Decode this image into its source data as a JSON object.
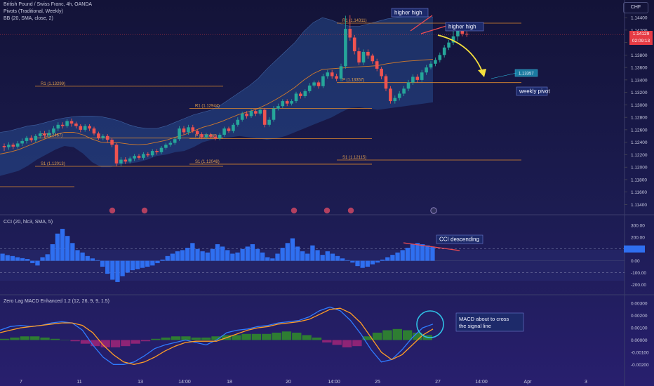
{
  "header": {
    "symbol_line": "British Pound / Swiss Franc, 4h, OANDA",
    "pivots_line": "Pivots (Traditional, Weekly)",
    "bb_line": "BB (20, SMA, close, 2)",
    "currency_badge": "CHF",
    "price_tag": "1.14129",
    "countdown": "02:09:13",
    "projection_tag": "1.13357"
  },
  "cci_header": "CCI (20, hlc3, SMA, 5)",
  "macd_header": "Zero Lag MACD Enhanced 1.2 (12, 26, 9, 9, 1.5)",
  "annotations": {
    "higher_high_1": "higher high",
    "higher_high_2": "higher high",
    "weekly_pivot": "weekly pivot",
    "cci_descending": "CCI descending",
    "macd_note_line1": "MACD about to cross",
    "macd_note_line2": "the signal line"
  },
  "colors": {
    "bull": "#26a69a",
    "bear": "#ef5350",
    "bb_fill": "#2a5aa5",
    "basis": "#d07a2c",
    "pivot": "#e08a2e",
    "cci_bar": "#2f6ff0",
    "macd_line": "#2f7bff",
    "signal_line": "#ff9d26",
    "hist_pos": "#2e7d32",
    "hist_neg": "#8e2476",
    "arrow": "#f5df3d",
    "callout": "#2fc1e6"
  },
  "chart_data": [
    {
      "type": "candlestick",
      "y_ticks": [
        "1.14400",
        "1.14200",
        "1.14000",
        "1.13800",
        "1.13600",
        "1.13400",
        "1.13200",
        "1.13000",
        "1.12800",
        "1.12600",
        "1.12400",
        "1.12200",
        "1.12000",
        "1.11800",
        "1.11600",
        "1.11400"
      ],
      "ylim": [
        1.1136,
        1.1448
      ],
      "x_ticks": [
        "7",
        "11",
        "13",
        "14:00",
        "18",
        "20",
        "14:00",
        "25",
        "27",
        "14:00",
        "Apr",
        "3"
      ],
      "last_price": 1.14129,
      "pivot_levels": [
        {
          "label": "R1 (1.13299)",
          "value": 1.13299
        },
        {
          "label": "P (1.12467)",
          "value": 1.12467
        },
        {
          "label": "S1 (1.12013)",
          "value": 1.12013
        },
        {
          "label": "R1 (1.12944)",
          "value": 1.12944
        },
        {
          "label": "P (1.12458)",
          "value": 1.12458
        },
        {
          "label": "S1 (1.12048)",
          "value": 1.12048
        },
        {
          "label": "R1 (1.14311)",
          "value": 1.14311
        },
        {
          "label": "P (1.13357)",
          "value": 1.13357
        },
        {
          "label": "S1 (1.12115)",
          "value": 1.12115
        }
      ],
      "candles": [
        [
          1.1234,
          1.1232,
          1.1238,
          1.1226
        ],
        [
          1.1232,
          1.1236,
          1.124,
          1.1228
        ],
        [
          1.1236,
          1.1233,
          1.1239,
          1.1229
        ],
        [
          1.1233,
          1.1238,
          1.1242,
          1.123
        ],
        [
          1.1238,
          1.1242,
          1.1246,
          1.1234
        ],
        [
          1.1242,
          1.1247,
          1.125,
          1.1238
        ],
        [
          1.1247,
          1.1243,
          1.1251,
          1.124
        ],
        [
          1.1243,
          1.125,
          1.1253,
          1.124
        ],
        [
          1.125,
          1.1254,
          1.1258,
          1.1246
        ],
        [
          1.1254,
          1.1251,
          1.1258,
          1.1247
        ],
        [
          1.1251,
          1.1255,
          1.126,
          1.1248
        ],
        [
          1.1255,
          1.1262,
          1.1266,
          1.1252
        ],
        [
          1.1262,
          1.1268,
          1.1272,
          1.1258
        ],
        [
          1.1268,
          1.1266,
          1.1272,
          1.1262
        ],
        [
          1.1266,
          1.1274,
          1.1277,
          1.1263
        ],
        [
          1.1274,
          1.127,
          1.1278,
          1.1265
        ],
        [
          1.127,
          1.1266,
          1.1273,
          1.1262
        ],
        [
          1.1266,
          1.126,
          1.1269,
          1.1256
        ],
        [
          1.126,
          1.1266,
          1.1269,
          1.1257
        ],
        [
          1.1266,
          1.1262,
          1.1269,
          1.1258
        ],
        [
          1.1262,
          1.1254,
          1.1265,
          1.1251
        ],
        [
          1.1254,
          1.1247,
          1.1257,
          1.1244
        ],
        [
          1.1247,
          1.125,
          1.1253,
          1.1243
        ],
        [
          1.125,
          1.1244,
          1.1253,
          1.124
        ],
        [
          1.1244,
          1.1236,
          1.1247,
          1.1232
        ],
        [
          1.1236,
          1.1206,
          1.1239,
          1.1201
        ],
        [
          1.1206,
          1.1212,
          1.1216,
          1.1201
        ],
        [
          1.1212,
          1.1209,
          1.1216,
          1.1205
        ],
        [
          1.1209,
          1.1214,
          1.1217,
          1.1206
        ],
        [
          1.1214,
          1.1218,
          1.1221,
          1.121
        ],
        [
          1.1218,
          1.1215,
          1.1221,
          1.1212
        ],
        [
          1.1215,
          1.1221,
          1.1224,
          1.1212
        ],
        [
          1.1221,
          1.1219,
          1.1224,
          1.1216
        ],
        [
          1.1219,
          1.1226,
          1.1229,
          1.1216
        ],
        [
          1.1226,
          1.1224,
          1.1229,
          1.122
        ],
        [
          1.1224,
          1.1231,
          1.1234,
          1.1221
        ],
        [
          1.1231,
          1.1236,
          1.1239,
          1.1228
        ],
        [
          1.1236,
          1.1239,
          1.1242,
          1.1233
        ],
        [
          1.1239,
          1.1245,
          1.1248,
          1.1236
        ],
        [
          1.1245,
          1.1262,
          1.1266,
          1.1242
        ],
        [
          1.1262,
          1.1256,
          1.1266,
          1.1252
        ],
        [
          1.1256,
          1.1264,
          1.1268,
          1.1252
        ],
        [
          1.1264,
          1.1258,
          1.1268,
          1.1255
        ],
        [
          1.1258,
          1.1253,
          1.1261,
          1.125
        ],
        [
          1.1253,
          1.1248,
          1.1256,
          1.1245
        ],
        [
          1.1248,
          1.1252,
          1.1255,
          1.1245
        ],
        [
          1.1252,
          1.1249,
          1.1255,
          1.1246
        ],
        [
          1.1249,
          1.1246,
          1.1253,
          1.1243
        ],
        [
          1.1246,
          1.1252,
          1.1255,
          1.1243
        ],
        [
          1.1252,
          1.1262,
          1.1265,
          1.1249
        ],
        [
          1.1262,
          1.1258,
          1.1265,
          1.1255
        ],
        [
          1.1258,
          1.1268,
          1.1271,
          1.1255
        ],
        [
          1.1268,
          1.1276,
          1.128,
          1.1265
        ],
        [
          1.1276,
          1.1286,
          1.1289,
          1.1273
        ],
        [
          1.1286,
          1.1282,
          1.129,
          1.1278
        ],
        [
          1.1282,
          1.129,
          1.1293,
          1.1279
        ],
        [
          1.129,
          1.1286,
          1.1293,
          1.1282
        ],
        [
          1.1286,
          1.1292,
          1.1295,
          1.1283
        ],
        [
          1.1292,
          1.1268,
          1.1295,
          1.1264
        ],
        [
          1.1268,
          1.1276,
          1.128,
          1.1265
        ],
        [
          1.1276,
          1.1294,
          1.1298,
          1.1273
        ],
        [
          1.1294,
          1.1298,
          1.1302,
          1.1291
        ],
        [
          1.1298,
          1.1306,
          1.1309,
          1.1295
        ],
        [
          1.1306,
          1.1302,
          1.1309,
          1.1298
        ],
        [
          1.1302,
          1.1306,
          1.1309,
          1.1299
        ],
        [
          1.1306,
          1.1318,
          1.1321,
          1.1303
        ],
        [
          1.1318,
          1.1314,
          1.1321,
          1.131
        ],
        [
          1.1314,
          1.1322,
          1.1325,
          1.1311
        ],
        [
          1.1322,
          1.1331,
          1.1335,
          1.1319
        ],
        [
          1.1331,
          1.1336,
          1.1339,
          1.1328
        ],
        [
          1.1336,
          1.133,
          1.1339,
          1.1326
        ],
        [
          1.133,
          1.1346,
          1.135,
          1.1327
        ],
        [
          1.1346,
          1.1352,
          1.1356,
          1.1342
        ],
        [
          1.1352,
          1.1346,
          1.1356,
          1.1342
        ],
        [
          1.1346,
          1.1342,
          1.135,
          1.1338
        ],
        [
          1.1342,
          1.1362,
          1.1366,
          1.1338
        ],
        [
          1.1362,
          1.1422,
          1.1443,
          1.1358
        ],
        [
          1.1422,
          1.1408,
          1.1444,
          1.1403
        ],
        [
          1.1408,
          1.1386,
          1.1412,
          1.1381
        ],
        [
          1.1386,
          1.1368,
          1.1392,
          1.1364
        ],
        [
          1.1368,
          1.1385,
          1.1389,
          1.1364
        ],
        [
          1.1385,
          1.1379,
          1.1389,
          1.1374
        ],
        [
          1.1379,
          1.137,
          1.1382,
          1.1366
        ],
        [
          1.137,
          1.1358,
          1.1374,
          1.1354
        ],
        [
          1.1358,
          1.1346,
          1.1361,
          1.1341
        ],
        [
          1.1346,
          1.1326,
          1.1349,
          1.1322
        ],
        [
          1.1326,
          1.1306,
          1.133,
          1.1302
        ],
        [
          1.1306,
          1.1311,
          1.1315,
          1.1302
        ],
        [
          1.1311,
          1.1318,
          1.1322,
          1.1307
        ],
        [
          1.1318,
          1.1326,
          1.133,
          1.1314
        ],
        [
          1.1326,
          1.1336,
          1.134,
          1.1322
        ],
        [
          1.1336,
          1.1345,
          1.1349,
          1.1332
        ],
        [
          1.1345,
          1.134,
          1.1349,
          1.1336
        ],
        [
          1.134,
          1.1352,
          1.1356,
          1.1337
        ],
        [
          1.1352,
          1.136,
          1.1364,
          1.1348
        ],
        [
          1.136,
          1.1366,
          1.137,
          1.1357
        ],
        [
          1.1366,
          1.1372,
          1.1376,
          1.1362
        ],
        [
          1.1372,
          1.138,
          1.1384,
          1.1368
        ],
        [
          1.138,
          1.1392,
          1.1396,
          1.1376
        ],
        [
          1.1392,
          1.14,
          1.1404,
          1.1388
        ],
        [
          1.14,
          1.141,
          1.1432,
          1.1396
        ],
        [
          1.141,
          1.142,
          1.143,
          1.1402
        ],
        [
          1.142,
          1.1414,
          1.1428,
          1.141
        ],
        [
          1.1414,
          1.1413,
          1.1418,
          1.1409
        ]
      ],
      "bb_upper": [
        1.1256,
        1.1258,
        1.1262,
        1.1266,
        1.1268,
        1.1272,
        1.1276,
        1.1279,
        1.1281,
        1.1282,
        1.1282,
        1.1281,
        1.1278,
        1.1274,
        1.1268,
        1.1264,
        1.1262,
        1.1262,
        1.1266,
        1.1272,
        1.1278,
        1.1284,
        1.1288,
        1.1292,
        1.13,
        1.131,
        1.132,
        1.133,
        1.1342,
        1.1358,
        1.1372,
        1.1386,
        1.14,
        1.1418,
        1.1432,
        1.144,
        1.1436,
        1.143,
        1.1426,
        1.1426,
        1.143,
        1.1434,
        1.1438,
        1.144,
        1.1442,
        1.1442,
        1.1442,
        1.1441
      ],
      "bb_lower": [
        1.1186,
        1.119,
        1.1194,
        1.1202,
        1.1212,
        1.122,
        1.1228,
        1.1234,
        1.1232,
        1.1222,
        1.1208,
        1.12,
        1.12,
        1.1204,
        1.1206,
        1.1208,
        1.1212,
        1.1218,
        1.122,
        1.1224,
        1.1226,
        1.1232,
        1.124,
        1.1244,
        1.1246,
        1.1248,
        1.125,
        1.1248,
        1.1246,
        1.1244,
        1.1246,
        1.125,
        1.1256,
        1.1262,
        1.1268,
        1.1274,
        1.128,
        1.1288,
        1.1295,
        1.1296,
        1.1294,
        1.1292,
        1.1294,
        1.1296,
        1.1298,
        1.13,
        1.1302,
        1.1304
      ],
      "bb_basis": [
        1.1221,
        1.1224,
        1.1228,
        1.1234,
        1.124,
        1.1246,
        1.1252,
        1.1256,
        1.1256,
        1.1252,
        1.1245,
        1.124,
        1.1239,
        1.1239,
        1.1237,
        1.1236,
        1.1237,
        1.124,
        1.1243,
        1.1248,
        1.1252,
        1.1258,
        1.1264,
        1.1268,
        1.1273,
        1.1279,
        1.1285,
        1.1289,
        1.1294,
        1.1301,
        1.1309,
        1.1318,
        1.1328,
        1.134,
        1.135,
        1.1357,
        1.1358,
        1.1359,
        1.136,
        1.1361,
        1.1362,
        1.1363,
        1.1366,
        1.1368,
        1.137,
        1.1371,
        1.1372,
        1.1373
      ]
    },
    {
      "type": "bar",
      "name": "CCI (20, hlc3, SMA, 5)",
      "y_ticks": [
        "300.00",
        "200.00",
        "100.00",
        "0.00",
        "-100.00",
        "-200.00"
      ],
      "ylim": [
        -240,
        330
      ],
      "bands": [
        100,
        -100
      ],
      "last_value": 100,
      "values": [
        60,
        48,
        40,
        30,
        22,
        15,
        -20,
        -40,
        30,
        55,
        140,
        230,
        270,
        210,
        150,
        90,
        70,
        40,
        20,
        5,
        -50,
        -110,
        -160,
        -180,
        -130,
        -100,
        -80,
        -70,
        -60,
        -50,
        -40,
        -20,
        10,
        40,
        60,
        80,
        90,
        110,
        150,
        100,
        80,
        70,
        100,
        140,
        120,
        90,
        60,
        70,
        100,
        120,
        140,
        100,
        70,
        30,
        20,
        60,
        110,
        150,
        190,
        120,
        80,
        60,
        130,
        90,
        50,
        80,
        60,
        40,
        20,
        5,
        -15,
        -45,
        -60,
        -50,
        -30,
        -15,
        10,
        30,
        50,
        70,
        90,
        110,
        140,
        150,
        140,
        130,
        120
      ],
      "trendline_label": "CCI descending"
    },
    {
      "type": "line",
      "name": "Zero Lag MACD Enhanced 1.2 (12, 26, 9, 9, 1.5)",
      "y_ticks": [
        "0.00300",
        "0.00200",
        "0.00100",
        "0.00000",
        "-0.00100",
        "-0.00200"
      ],
      "ylim": [
        -0.0029,
        0.0033
      ],
      "series": [
        {
          "name": "MACD",
          "values": [
            0.0008,
            0.0011,
            0.0012,
            0.0011,
            0.0012,
            0.0014,
            0.0015,
            0.0014,
            0.0008,
            -0.0004,
            -0.0014,
            -0.002,
            -0.002,
            -0.0018,
            -0.0013,
            -0.0007,
            -0.0004,
            -0.0002,
            0.0,
            -0.0002,
            -0.0004,
            0.0,
            0.0006,
            0.0008,
            0.0009,
            0.0011,
            0.0012,
            0.0014,
            0.0015,
            0.0016,
            0.0019,
            0.0024,
            0.0027,
            0.0024,
            0.0016,
            0.0005,
            -0.0008,
            -0.0018,
            -0.0016,
            -0.0008,
            0.0002,
            0.001,
            0.0013
          ]
        },
        {
          "name": "Signal",
          "values": [
            0.0006,
            0.0008,
            0.001,
            0.0011,
            0.0012,
            0.0013,
            0.0014,
            0.0014,
            0.0012,
            0.0006,
            -0.0004,
            -0.0012,
            -0.0018,
            -0.002,
            -0.0018,
            -0.0014,
            -0.0009,
            -0.0005,
            -0.0002,
            -0.0001,
            -0.0001,
            -0.0001,
            0.0002,
            0.0005,
            0.0008,
            0.001,
            0.0011,
            0.0013,
            0.0014,
            0.0015,
            0.0017,
            0.0021,
            0.0025,
            0.0026,
            0.0022,
            0.0014,
            0.0002,
            -0.001,
            -0.0016,
            -0.0012,
            -0.0004,
            0.0004,
            0.0009
          ]
        }
      ],
      "histogram": [
        0.0001,
        0.0002,
        0.0003,
        0.0003,
        0.0002,
        0.0001,
        0.0,
        -0.0001,
        -0.0003,
        -0.0005,
        -0.0006,
        -0.0006,
        -0.0005,
        -0.0003,
        -0.0001,
        0.0001,
        0.0002,
        0.0003,
        0.0003,
        0.0002,
        0.0002,
        0.0003,
        0.0004,
        0.0004,
        0.0005,
        0.0005,
        0.0005,
        0.0006,
        0.0007,
        0.0006,
        0.0004,
        0.0002,
        -0.0002,
        -0.0004,
        -0.0006,
        -0.0005,
        0.0003,
        0.0006,
        0.0008,
        0.0009,
        0.0008,
        0.0006,
        0.0004
      ],
      "annotation": "MACD about to cross the signal line"
    }
  ]
}
